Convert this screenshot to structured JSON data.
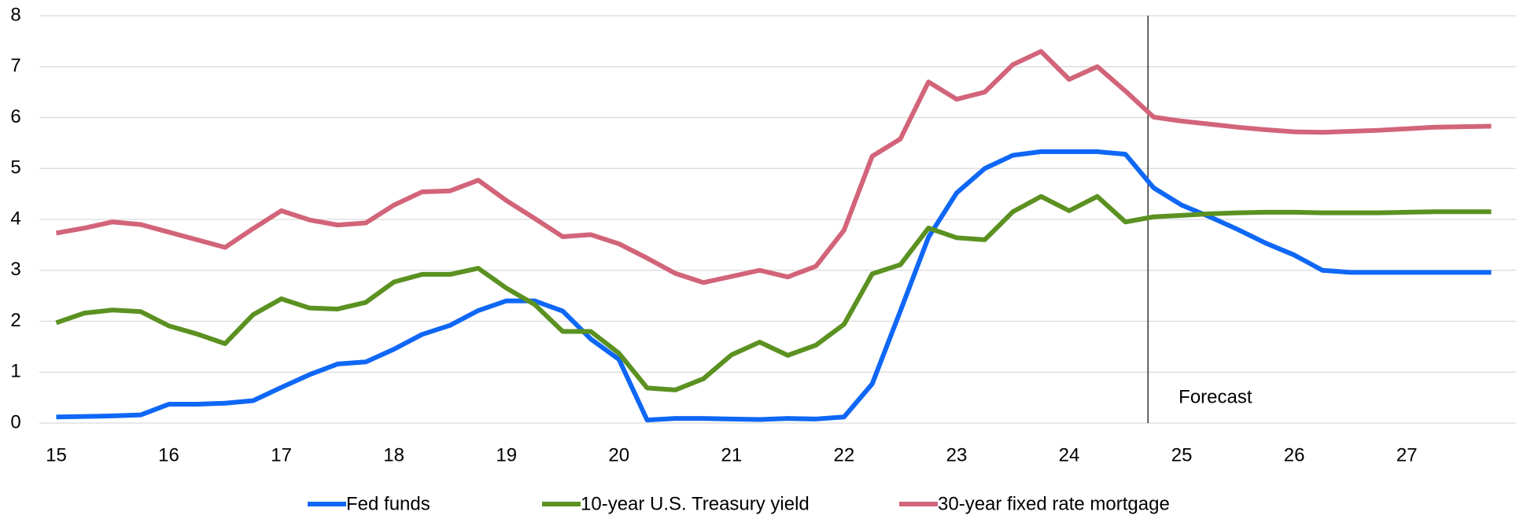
{
  "chart_data": {
    "type": "line",
    "x": [
      15,
      15.25,
      15.5,
      15.75,
      16,
      16.25,
      16.5,
      16.75,
      17,
      17.25,
      17.5,
      17.75,
      18,
      18.25,
      18.5,
      18.75,
      19,
      19.25,
      19.5,
      19.75,
      20,
      20.25,
      20.5,
      20.75,
      21,
      21.25,
      21.5,
      21.75,
      22,
      22.25,
      22.5,
      22.75,
      23,
      23.25,
      23.5,
      23.75,
      24,
      24.25,
      24.5,
      24.75,
      25,
      25.25,
      25.5,
      25.75,
      26,
      26.25,
      26.5,
      26.75,
      27,
      27.25,
      27.5,
      27.75
    ],
    "series": [
      {
        "name": "Fed funds",
        "color": "#0f67f5",
        "values": [
          0.12,
          0.13,
          0.14,
          0.16,
          0.37,
          0.37,
          0.39,
          0.44,
          0.7,
          0.95,
          1.16,
          1.2,
          1.45,
          1.74,
          1.92,
          2.21,
          2.4,
          2.4,
          2.2,
          1.65,
          1.25,
          0.06,
          0.09,
          0.09,
          0.08,
          0.07,
          0.09,
          0.08,
          0.12,
          0.77,
          2.2,
          3.65,
          4.52,
          5.0,
          5.26,
          5.33,
          5.33,
          5.33,
          5.28,
          4.62,
          4.28,
          4.05,
          3.8,
          3.53,
          3.3,
          3.0,
          2.96,
          2.96,
          2.96,
          2.96,
          2.96,
          2.96
        ]
      },
      {
        "name": "10-year U.S. Treasury yield",
        "color": "#5b9121",
        "values": [
          1.97,
          2.16,
          2.22,
          2.19,
          1.91,
          1.75,
          1.56,
          2.13,
          2.44,
          2.26,
          2.24,
          2.37,
          2.77,
          2.92,
          2.92,
          3.04,
          2.65,
          2.33,
          1.8,
          1.8,
          1.37,
          0.69,
          0.65,
          0.87,
          1.34,
          1.59,
          1.33,
          1.53,
          1.94,
          2.93,
          3.11,
          3.83,
          3.64,
          3.6,
          4.15,
          4.45,
          4.17,
          4.45,
          3.95,
          4.05,
          4.08,
          4.11,
          4.13,
          4.14,
          4.14,
          4.13,
          4.13,
          4.13,
          4.14,
          4.15,
          4.15,
          4.15
        ]
      },
      {
        "name": "30-year fixed rate mortgage",
        "color": "#d2647a",
        "values": [
          3.73,
          3.83,
          3.95,
          3.9,
          3.75,
          3.6,
          3.45,
          3.82,
          4.17,
          3.99,
          3.89,
          3.93,
          4.28,
          4.54,
          4.56,
          4.77,
          4.37,
          4.02,
          3.66,
          3.7,
          3.52,
          3.24,
          2.94,
          2.76,
          2.88,
          3.0,
          2.87,
          3.08,
          3.79,
          5.24,
          5.58,
          6.7,
          6.36,
          6.5,
          7.04,
          7.3,
          6.75,
          7.0,
          6.52,
          6.01,
          5.93,
          5.87,
          5.81,
          5.76,
          5.72,
          5.71,
          5.73,
          5.75,
          5.78,
          5.81,
          5.82,
          5.83
        ]
      }
    ],
    "xlim": [
      14.85,
      27.97
    ],
    "xticks": [
      15,
      16,
      17,
      18,
      19,
      20,
      21,
      22,
      23,
      24,
      25,
      26,
      27
    ],
    "ylim": [
      0,
      8
    ],
    "yticks": [
      0,
      1,
      2,
      3,
      4,
      5,
      6,
      7,
      8
    ],
    "grid": true,
    "annotation": {
      "text": "Forecast",
      "x": 24.7
    }
  }
}
